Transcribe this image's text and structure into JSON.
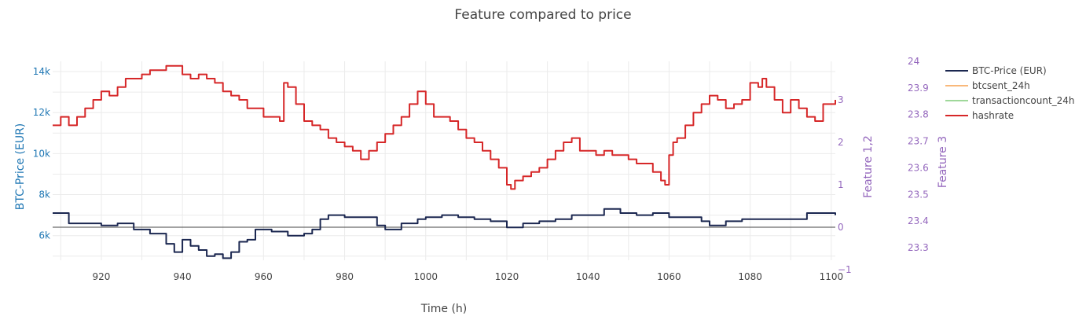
{
  "chart_data": {
    "type": "line",
    "title": "Feature compared to price",
    "xlabel": "Time (h)",
    "ylabel_left": "BTC-Price (EUR)",
    "ylabel_right1": "Feature 1,2",
    "ylabel_right2": "Feature 3",
    "xlim": [
      908,
      1101
    ],
    "ylim_left": [
      4800,
      14500
    ],
    "ylim_right1": [
      -1,
      4
    ],
    "ylim_right2": [
      23.25,
      24
    ],
    "x_ticks": [
      920,
      940,
      960,
      980,
      1000,
      1020,
      1040,
      1060,
      1080,
      1100
    ],
    "x_tick_labels": [
      "920",
      "940",
      "960",
      "980",
      "1000",
      "1020",
      "1040",
      "1060",
      "1080",
      "1100"
    ],
    "y_left_ticks": [
      6000,
      8000,
      10000,
      12000,
      14000
    ],
    "y_left_tick_labels": [
      "6k",
      "8k",
      "10k",
      "12k",
      "14k"
    ],
    "y_right1_ticks": [
      -1,
      0,
      1,
      2,
      3
    ],
    "y_right1_tick_labels": [
      "−1",
      "0",
      "1",
      "2",
      "3"
    ],
    "y_right2_ticks": [
      23.3,
      23.4,
      23.5,
      23.6,
      23.7,
      23.8,
      23.9,
      24
    ],
    "y_right2_tick_labels": [
      "23.3",
      "23.4",
      "23.5",
      "23.6",
      "23.7",
      "23.8",
      "23.9",
      "24"
    ],
    "grid": true,
    "legend_position": "top-right",
    "colors": {
      "btc": "#1b2750",
      "btcsent": "#f9b87a",
      "transactioncount": "#9fd89a",
      "hashrate": "#d62728",
      "left_axis": "#1f77b4",
      "right_axis": "#9467bd",
      "grid": "#ebebeb",
      "zero_line": "#444444"
    },
    "series": [
      {
        "name": "BTC-Price (EUR)",
        "axis": "left",
        "x": [
          908,
          912,
          916,
          920,
          924,
          928,
          932,
          936,
          938,
          940,
          942,
          944,
          946,
          948,
          950,
          952,
          954,
          956,
          958,
          960,
          962,
          964,
          966,
          968,
          970,
          972,
          974,
          976,
          978,
          980,
          984,
          988,
          990,
          994,
          998,
          1000,
          1004,
          1008,
          1012,
          1016,
          1020,
          1024,
          1028,
          1032,
          1036,
          1040,
          1044,
          1048,
          1052,
          1056,
          1060,
          1064,
          1068,
          1070,
          1074,
          1078,
          1082,
          1086,
          1090,
          1094,
          1098,
          1101
        ],
        "values": [
          7100,
          6600,
          6600,
          6500,
          6600,
          6300,
          6100,
          5600,
          5200,
          5800,
          5500,
          5300,
          5000,
          5100,
          4900,
          5200,
          5700,
          5800,
          6300,
          6300,
          6200,
          6200,
          6000,
          6000,
          6100,
          6300,
          6800,
          7000,
          7000,
          6900,
          6900,
          6500,
          6300,
          6600,
          6800,
          6900,
          7000,
          6900,
          6800,
          6700,
          6400,
          6600,
          6700,
          6800,
          7000,
          7000,
          7300,
          7100,
          7000,
          7100,
          6900,
          6900,
          6700,
          6500,
          6700,
          6800,
          6800,
          6800,
          6800,
          7100,
          7100,
          7000
        ]
      },
      {
        "name": "btcsent_24h",
        "axis": "right1",
        "x": [],
        "values": []
      },
      {
        "name": "transactioncount_24h",
        "axis": "right1",
        "x": [],
        "values": []
      },
      {
        "name": "hashrate",
        "axis": "right1",
        "x": [
          908,
          910,
          912,
          914,
          916,
          918,
          920,
          922,
          924,
          926,
          928,
          930,
          932,
          934,
          936,
          938,
          940,
          942,
          944,
          946,
          948,
          950,
          952,
          954,
          956,
          958,
          960,
          962,
          964,
          965,
          966,
          968,
          970,
          972,
          974,
          976,
          978,
          980,
          982,
          984,
          986,
          988,
          990,
          992,
          994,
          996,
          998,
          999,
          1000,
          1002,
          1004,
          1006,
          1008,
          1010,
          1012,
          1014,
          1016,
          1018,
          1020,
          1021,
          1022,
          1024,
          1026,
          1028,
          1030,
          1032,
          1034,
          1036,
          1038,
          1040,
          1042,
          1044,
          1046,
          1048,
          1050,
          1052,
          1054,
          1056,
          1058,
          1059,
          1060,
          1061,
          1062,
          1064,
          1066,
          1068,
          1070,
          1072,
          1074,
          1076,
          1078,
          1080,
          1082,
          1083,
          1084,
          1086,
          1088,
          1090,
          1092,
          1094,
          1096,
          1098,
          1101
        ],
        "values": [
          2.4,
          2.6,
          2.4,
          2.6,
          2.8,
          3.0,
          3.2,
          3.1,
          3.3,
          3.5,
          3.5,
          3.6,
          3.7,
          3.7,
          3.8,
          3.8,
          3.6,
          3.5,
          3.6,
          3.5,
          3.4,
          3.2,
          3.1,
          3.0,
          2.8,
          2.8,
          2.6,
          2.6,
          2.5,
          3.4,
          3.3,
          2.9,
          2.5,
          2.4,
          2.3,
          2.1,
          2.0,
          1.9,
          1.8,
          1.6,
          1.8,
          2.0,
          2.2,
          2.4,
          2.6,
          2.9,
          3.2,
          3.2,
          2.9,
          2.6,
          2.6,
          2.5,
          2.3,
          2.1,
          2.0,
          1.8,
          1.6,
          1.4,
          1.0,
          0.9,
          1.1,
          1.2,
          1.3,
          1.4,
          1.6,
          1.8,
          2.0,
          2.1,
          1.8,
          1.8,
          1.7,
          1.8,
          1.7,
          1.7,
          1.6,
          1.5,
          1.5,
          1.3,
          1.1,
          1.0,
          1.7,
          2.0,
          2.1,
          2.4,
          2.7,
          2.9,
          3.1,
          3.0,
          2.8,
          2.9,
          3.0,
          3.4,
          3.3,
          3.5,
          3.3,
          3.0,
          2.7,
          3.0,
          2.8,
          2.6,
          2.5,
          2.9,
          3.0
        ]
      }
    ]
  }
}
